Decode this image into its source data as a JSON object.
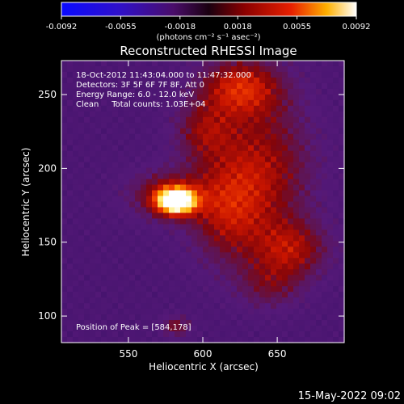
{
  "colorbar": {
    "tick_labels": [
      "-0.0092",
      "-0.0055",
      "-0.0018",
      "0.0018",
      "0.0055",
      "0.0092"
    ],
    "range": [
      -0.0092,
      0.0092
    ],
    "unit_label": "(photons cm⁻² s⁻¹ asec⁻²)"
  },
  "chart_data": {
    "type": "heatmap",
    "title": "Reconstructed RHESSI Image",
    "xlabel": "Heliocentric X (arcsec)",
    "ylabel": "Heliocentric Y (arcsec)",
    "xlim": [
      505,
      695
    ],
    "ylim": [
      82,
      273
    ],
    "x_ticks": [
      550,
      600,
      650
    ],
    "y_ticks": [
      100,
      150,
      200,
      250
    ],
    "x_tick_labels": [
      "550",
      "600",
      "650"
    ],
    "y_tick_labels": [
      "100",
      "150",
      "200",
      "250"
    ],
    "annotations": [
      "18-Oct-2012 11:43:04.000 to 11:47:32.000",
      "Detectors: 3F 5F 6F 7F 8F, Att 0",
      "Energy Range: 6.0 - 12.0 keV",
      "Clean     Total counts: 1.03E+04"
    ],
    "peak_label": "Position of Peak = [584,178]",
    "peak": [
      584,
      178
    ],
    "sources": [
      {
        "x": 582,
        "y": 178,
        "sx": 9,
        "sy": 6,
        "amp": 1.0
      },
      {
        "x": 575,
        "y": 182,
        "sx": 18,
        "sy": 12,
        "amp": 0.35
      },
      {
        "x": 625,
        "y": 255,
        "sx": 20,
        "sy": 14,
        "amp": 0.45
      },
      {
        "x": 640,
        "y": 200,
        "sx": 25,
        "sy": 35,
        "amp": 0.38
      },
      {
        "x": 615,
        "y": 170,
        "sx": 18,
        "sy": 25,
        "amp": 0.32
      },
      {
        "x": 660,
        "y": 145,
        "sx": 18,
        "sy": 14,
        "amp": 0.35
      },
      {
        "x": 645,
        "y": 120,
        "sx": 16,
        "sy": 12,
        "amp": 0.22
      },
      {
        "x": 600,
        "y": 225,
        "sx": 14,
        "sy": 14,
        "amp": 0.28
      },
      {
        "x": 582,
        "y": 93,
        "sx": 7,
        "sy": 5,
        "amp": 0.3
      }
    ]
  },
  "footer": {
    "date": "15-May-2022 09:02"
  }
}
